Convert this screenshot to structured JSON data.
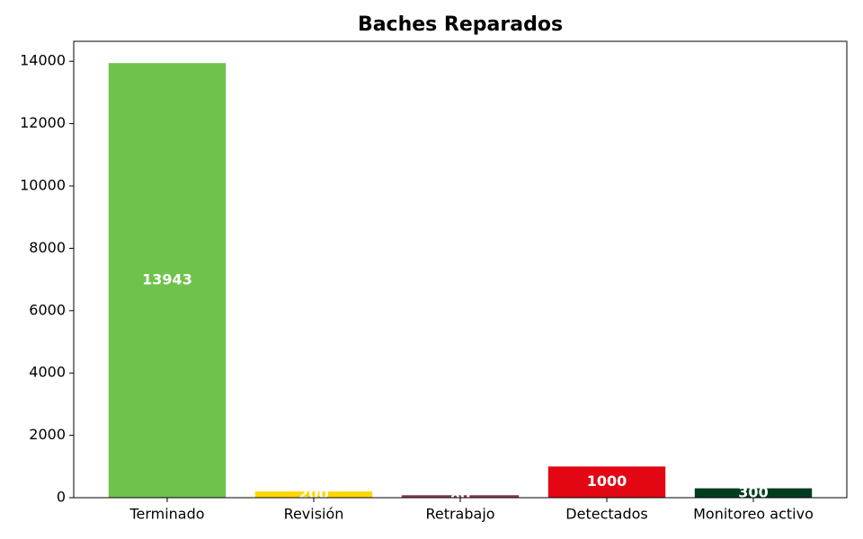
{
  "chart_data": {
    "type": "bar",
    "title": "Baches Reparados",
    "categories": [
      "Terminado",
      "Revisión",
      "Retrabajo",
      "Detectados",
      "Monitoreo activo"
    ],
    "values": [
      13943,
      200,
      80,
      1000,
      300
    ],
    "colors": [
      "#6fc24b",
      "#ffd700",
      "#8b3a62",
      "#e30613",
      "#003d1f"
    ],
    "ylim": [
      0,
      14640
    ],
    "yticks": [
      0,
      2000,
      4000,
      6000,
      8000,
      10000,
      12000,
      14000
    ],
    "grid": false
  }
}
